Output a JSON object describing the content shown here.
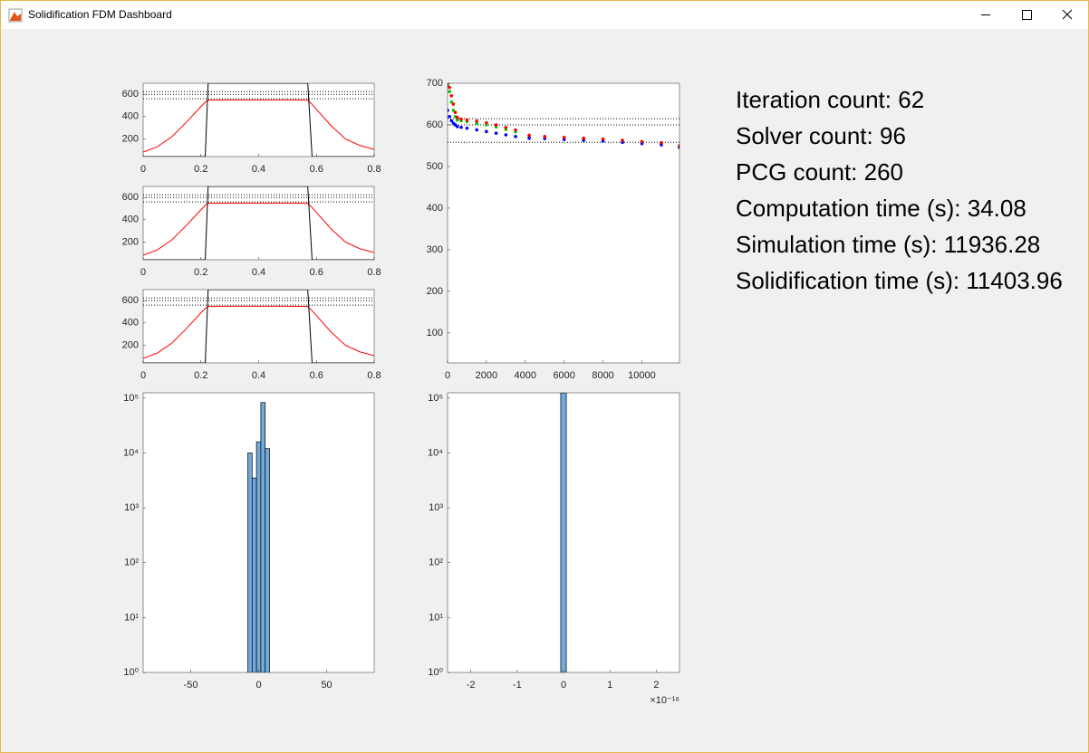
{
  "window": {
    "title": "Solidification FDM Dashboard"
  },
  "stats": [
    {
      "label": "Iteration count:",
      "value": 62
    },
    {
      "label": "Solver count:",
      "value": 96
    },
    {
      "label": "PCG count:",
      "value": 260
    },
    {
      "label": "Computation time (s):",
      "value": 34.08
    },
    {
      "label": "Simulation time (s):",
      "value": 11936.28
    },
    {
      "label": "Solidification time (s):",
      "value": 11403.96
    }
  ],
  "chart_data": [
    {
      "type": "line",
      "x": [
        0,
        0.05,
        0.1,
        0.15,
        0.2,
        0.215,
        0.225,
        0.3,
        0.4,
        0.5,
        0.57,
        0.585,
        0.65,
        0.7,
        0.75,
        0.8
      ],
      "series": [
        {
          "color": "#ff0000",
          "values": [
            80,
            130,
            220,
            350,
            490,
            530,
            548,
            550,
            550,
            550,
            548,
            510,
            320,
            200,
            140,
            105
          ]
        },
        {
          "color": "#000000",
          "values": [
            40,
            40,
            40,
            40,
            40,
            40,
            700,
            700,
            700,
            700,
            700,
            40,
            40,
            40,
            40,
            40
          ]
        }
      ],
      "reference_lines": {
        "values": [
          625,
          600,
          560
        ],
        "color": "#000000",
        "linestyle": "dotted"
      },
      "xlim": [
        0,
        0.8
      ],
      "xticks": [
        0,
        0.2,
        0.4,
        0.6,
        0.8
      ],
      "ylim": [
        40,
        700
      ],
      "yticks": [
        200,
        400,
        600
      ]
    },
    {
      "type": "line",
      "x": [
        0,
        0.05,
        0.1,
        0.15,
        0.2,
        0.215,
        0.225,
        0.3,
        0.4,
        0.5,
        0.57,
        0.585,
        0.65,
        0.7,
        0.75,
        0.8
      ],
      "series": [
        {
          "color": "#ff0000",
          "values": [
            80,
            130,
            220,
            350,
            490,
            530,
            548,
            550,
            550,
            550,
            548,
            510,
            320,
            200,
            140,
            105
          ]
        },
        {
          "color": "#000000",
          "values": [
            40,
            40,
            40,
            40,
            40,
            40,
            700,
            700,
            700,
            700,
            700,
            40,
            40,
            40,
            40,
            40
          ]
        }
      ],
      "reference_lines": {
        "values": [
          625,
          600,
          560
        ],
        "color": "#000000",
        "linestyle": "dotted"
      },
      "xlim": [
        0,
        0.8
      ],
      "xticks": [
        0,
        0.2,
        0.4,
        0.6,
        0.8
      ],
      "ylim": [
        40,
        700
      ],
      "yticks": [
        200,
        400,
        600
      ]
    },
    {
      "type": "line",
      "x": [
        0,
        0.05,
        0.1,
        0.15,
        0.2,
        0.215,
        0.225,
        0.3,
        0.4,
        0.5,
        0.57,
        0.585,
        0.65,
        0.7,
        0.75,
        0.8
      ],
      "series": [
        {
          "color": "#ff0000",
          "values": [
            80,
            130,
            220,
            350,
            490,
            530,
            548,
            550,
            550,
            550,
            548,
            510,
            320,
            200,
            140,
            105
          ]
        },
        {
          "color": "#000000",
          "values": [
            40,
            40,
            40,
            40,
            40,
            40,
            700,
            700,
            700,
            700,
            700,
            40,
            40,
            40,
            40,
            40
          ]
        }
      ],
      "reference_lines": {
        "values": [
          625,
          600,
          560
        ],
        "color": "#000000",
        "linestyle": "dotted"
      },
      "xlim": [
        0,
        0.8
      ],
      "xticks": [
        0,
        0.2,
        0.4,
        0.6,
        0.8
      ],
      "ylim": [
        40,
        700
      ],
      "yticks": [
        200,
        400,
        600
      ]
    },
    {
      "type": "scatter",
      "x": [
        0,
        100,
        200,
        300,
        400,
        500,
        700,
        1000,
        1500,
        2000,
        2500,
        3000,
        3500,
        4200,
        5000,
        6000,
        7000,
        8000,
        9000,
        10000,
        11000,
        11936
      ],
      "series": [
        {
          "color": "#00cc00",
          "values": [
            695,
            680,
            655,
            635,
            620,
            612,
            610,
            608,
            604,
            600,
            595,
            589,
            583,
            572,
            570,
            568,
            566,
            564,
            561,
            558,
            555,
            548
          ]
        },
        {
          "color": "#0000ff",
          "values": [
            635,
            620,
            610,
            604,
            600,
            596,
            594,
            592,
            588,
            584,
            580,
            576,
            572,
            568,
            567,
            565,
            563,
            561,
            558,
            555,
            552,
            546
          ]
        },
        {
          "color": "#ff0000",
          "values": [
            700,
            690,
            670,
            650,
            630,
            618,
            614,
            612,
            609,
            605,
            600,
            594,
            588,
            575,
            572,
            570,
            568,
            566,
            563,
            560,
            557,
            550
          ]
        }
      ],
      "reference_lines": {
        "values": [
          615,
          600,
          558
        ],
        "color": "#000000",
        "linestyle": "dotted"
      },
      "xlim": [
        0,
        11936
      ],
      "xticks": [
        0,
        2000,
        4000,
        6000,
        8000,
        10000
      ],
      "ylim": [
        28,
        700
      ],
      "yticks": [
        100,
        200,
        300,
        400,
        500,
        600,
        700
      ]
    },
    {
      "type": "histogram",
      "bins": [
        -8,
        -4.8,
        -1.6,
        1.6,
        4.8,
        8
      ],
      "counts": [
        10000,
        3500,
        16000,
        83000,
        12000
      ],
      "color": "#72aadb",
      "yscale": "log",
      "xlim": [
        -85,
        85
      ],
      "xticks": [
        -50,
        0,
        50
      ],
      "ylim": [
        1,
        125000
      ],
      "yticks": [
        {
          "value": 1,
          "label": "10⁰"
        },
        {
          "value": 10,
          "label": "10¹"
        },
        {
          "value": 100,
          "label": "10²"
        },
        {
          "value": 1000,
          "label": "10³"
        },
        {
          "value": 10000,
          "label": "10⁴"
        },
        {
          "value": 100000,
          "label": "10⁵"
        }
      ]
    },
    {
      "type": "histogram",
      "bins": [
        -6e-18,
        6e-18
      ],
      "counts": [
        124500
      ],
      "color": "#72aadb",
      "yscale": "log",
      "xlim": [
        -2.5e-16,
        2.5e-16
      ],
      "xticks": [
        {
          "value": -2e-16,
          "label": "-2"
        },
        {
          "value": -1e-16,
          "label": "-1"
        },
        {
          "value": 0,
          "label": "0"
        },
        {
          "value": 1e-16,
          "label": "1"
        },
        {
          "value": 2e-16,
          "label": "2"
        }
      ],
      "exponent_label": "×10⁻¹⁶",
      "ylim": [
        1,
        125000
      ],
      "yticks": [
        {
          "value": 1,
          "label": "10⁰"
        },
        {
          "value": 10,
          "label": "10¹"
        },
        {
          "value": 100,
          "label": "10²"
        },
        {
          "value": 1000,
          "label": "10³"
        },
        {
          "value": 10000,
          "label": "10⁴"
        },
        {
          "value": 100000,
          "label": "10⁵"
        }
      ]
    }
  ]
}
